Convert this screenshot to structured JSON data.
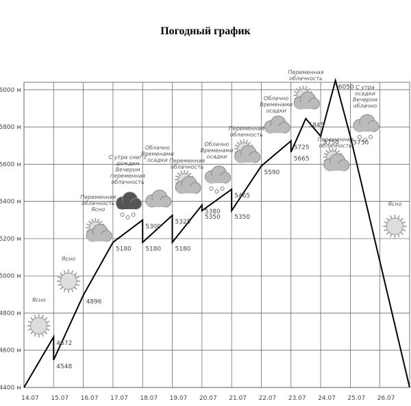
{
  "chart_data": {
    "type": "line",
    "title": "Погодный график",
    "x": [
      0,
      1,
      1,
      2,
      3,
      4,
      4,
      5,
      5,
      6,
      6,
      7,
      7,
      8,
      9,
      9,
      9.5,
      10,
      10.5,
      11,
      13
    ],
    "values": [
      4400,
      4672,
      4548,
      4896,
      5180,
      5300,
      5180,
      5325,
      5180,
      5380,
      5350,
      5465,
      5350,
      5590,
      5725,
      5665,
      5845,
      5750,
      6050,
      5750,
      4400
    ],
    "value_labels": [
      null,
      "4672",
      "4548",
      "4896",
      "5180",
      "5300",
      "5180",
      "5325",
      "5180",
      "5380",
      "5350",
      "5465",
      "5350",
      "5590",
      "5725",
      "5665",
      "5845",
      "5750",
      "6050",
      "5750",
      null
    ],
    "color": "#000000",
    "xlim": [
      0,
      13
    ],
    "xticks": [
      {
        "value": 0,
        "label": "14.07"
      },
      {
        "value": 1,
        "label": "15.07"
      },
      {
        "value": 2,
        "label": "16.07"
      },
      {
        "value": 3,
        "label": "17.07"
      },
      {
        "value": 4,
        "label": "18.07"
      },
      {
        "value": 5,
        "label": "19.07"
      },
      {
        "value": 6,
        "label": "20.07"
      },
      {
        "value": 7,
        "label": "21.07"
      },
      {
        "value": 8,
        "label": "22.07"
      },
      {
        "value": 9,
        "label": "23.07"
      },
      {
        "value": 10,
        "label": "24.07"
      },
      {
        "value": 11,
        "label": "25.07"
      },
      {
        "value": 12,
        "label": "26.07"
      }
    ],
    "ylim": [
      4400,
      6040
    ],
    "yticks": [
      {
        "value": 4400,
        "label": "4400 м"
      },
      {
        "value": 4600,
        "label": "4600 м"
      },
      {
        "value": 4800,
        "label": "4800 м"
      },
      {
        "value": 5000,
        "label": "5000 м"
      },
      {
        "value": 5200,
        "label": "5200 м"
      },
      {
        "value": 5400,
        "label": "5400 м"
      },
      {
        "value": 5600,
        "label": "5600 м"
      },
      {
        "value": 5800,
        "label": "5800 м"
      },
      {
        "value": 6000,
        "label": "6000 м"
      }
    ],
    "grid": true,
    "annotations": [
      {
        "text": [
          "Ясно"
        ],
        "icon": "sun"
      },
      {
        "text": [
          "Ясно"
        ],
        "icon": "sun"
      },
      {
        "text": [
          "Переменная",
          "облачность",
          "Ясно"
        ],
        "icon": "partly"
      },
      {
        "text": [
          "С утра снег с",
          "дождем",
          "Вечером",
          "переменная",
          "облачность"
        ],
        "icon": "storm"
      },
      {
        "text": [
          "Облачно",
          "Временами",
          "осадки"
        ],
        "icon": "cloud"
      },
      {
        "text": [
          "Переменная",
          "облачность"
        ],
        "icon": "partly"
      },
      {
        "text": [
          "Облачно",
          "Временами",
          "осадки"
        ],
        "icon": "snow"
      },
      {
        "text": [
          "Переменная",
          "облачность"
        ],
        "icon": "partly"
      },
      {
        "text": [
          "Облачно",
          "Временами",
          "осадки"
        ],
        "icon": "cloud"
      },
      {
        "text": [
          "Переменная",
          "облачность"
        ],
        "icon": "partly"
      },
      {
        "text": [
          "Переменная",
          "облачность"
        ],
        "icon": "partly"
      },
      {
        "text": [
          "С утра",
          "осадки",
          "Вечером",
          "облачно"
        ],
        "icon": "snow"
      },
      {
        "text": [
          "Ясно"
        ],
        "icon": "sun"
      }
    ]
  }
}
